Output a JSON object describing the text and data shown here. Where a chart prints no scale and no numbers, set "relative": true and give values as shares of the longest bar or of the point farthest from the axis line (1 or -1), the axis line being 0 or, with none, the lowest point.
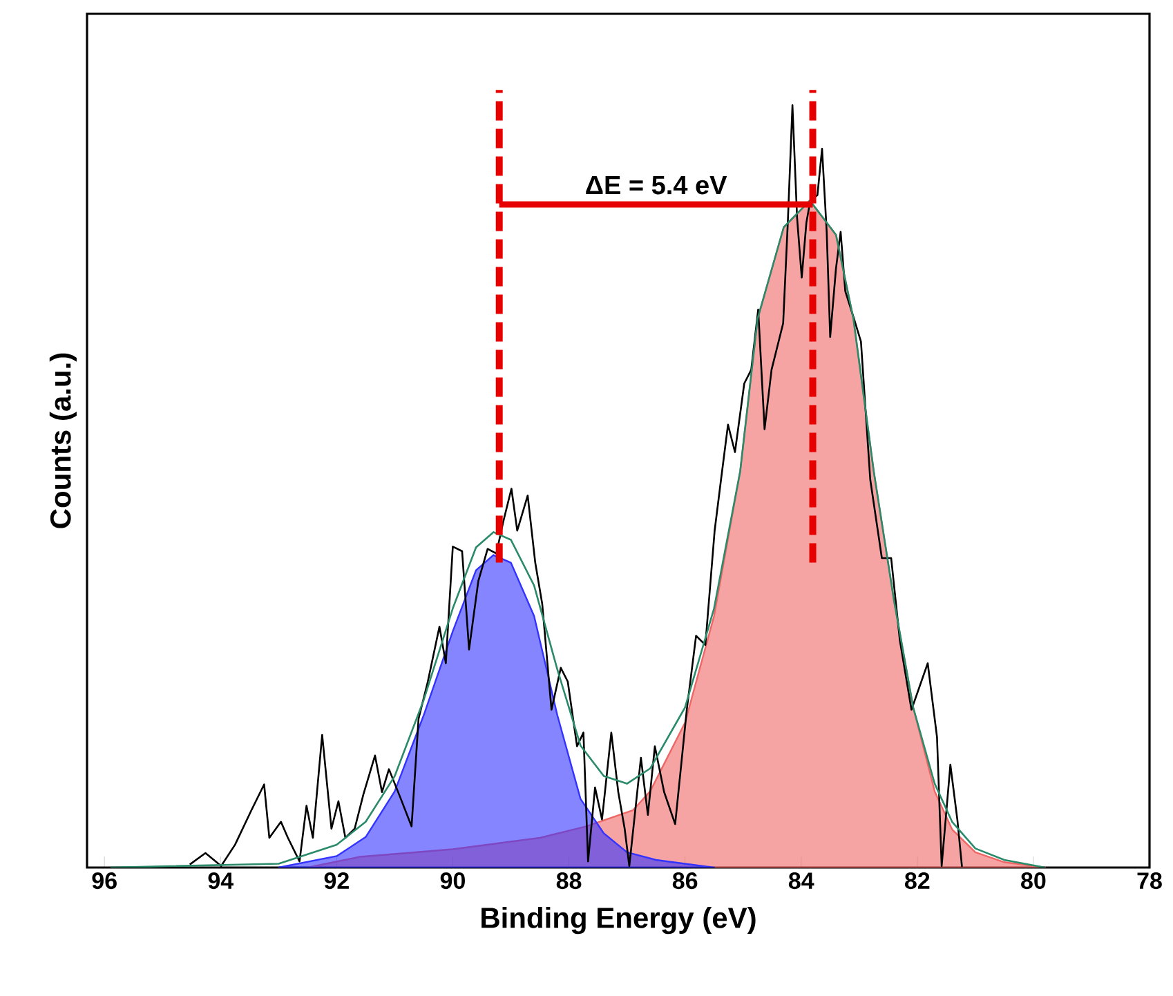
{
  "chart_data": {
    "type": "line",
    "relative": true,
    "xlabel": "Binding Energy (eV)",
    "ylabel": "Counts (a.u.)",
    "xlim": [
      96.3,
      78
    ],
    "xticks": [
      96,
      94,
      92,
      90,
      88,
      86,
      84,
      82,
      80,
      78
    ],
    "series": [
      {
        "type": "area",
        "color": "#ee6666",
        "x": [
          92.5,
          91.6,
          90.0,
          88.5,
          87.7,
          86.9,
          86.6,
          86.0,
          85.5,
          85.05,
          84.75,
          84.3,
          83.85,
          83.4,
          83.1,
          82.75,
          82.4,
          82.07,
          81.7,
          81.4,
          81.0,
          80.5,
          79.8
        ],
        "values": [
          0.0,
          0.014,
          0.024,
          0.039,
          0.054,
          0.075,
          0.1,
          0.19,
          0.33,
          0.52,
          0.72,
          0.84,
          0.875,
          0.83,
          0.72,
          0.52,
          0.35,
          0.21,
          0.1,
          0.05,
          0.02,
          0.007,
          0.0
        ]
      },
      {
        "type": "area",
        "color": "#3333ff",
        "x": [
          93.0,
          92.0,
          91.5,
          91.0,
          90.5,
          90.0,
          89.6,
          89.3,
          89.0,
          88.6,
          88.2,
          87.8,
          87.4,
          87.0,
          86.5,
          85.5
        ],
        "values": [
          0.0,
          0.015,
          0.04,
          0.1,
          0.2,
          0.31,
          0.39,
          0.41,
          0.4,
          0.33,
          0.2,
          0.09,
          0.045,
          0.02,
          0.01,
          0.0
        ]
      },
      {
        "color": "#000000",
        "x": [
          94.53,
          94.26,
          93.99,
          93.75,
          93.47,
          93.25,
          93.16,
          92.96,
          92.84,
          92.64,
          92.52,
          92.41,
          92.25,
          92.09,
          91.97,
          91.85,
          91.69,
          91.54,
          91.34,
          91.22,
          91.1,
          90.91,
          90.71,
          90.59,
          90.43,
          90.23,
          90.12,
          90.0,
          89.84,
          89.72,
          89.56,
          89.4,
          89.25,
          89.13,
          88.99,
          88.89,
          88.71,
          88.58,
          88.46,
          88.3,
          88.14,
          88.02,
          87.86,
          87.75,
          87.67,
          87.55,
          87.43,
          87.27,
          87.15,
          87.04,
          86.96,
          86.76,
          86.64,
          86.52,
          86.36,
          86.17,
          85.97,
          85.81,
          85.65,
          85.49,
          85.38,
          85.26,
          85.14,
          84.98,
          84.86,
          84.74,
          84.63,
          84.51,
          84.31,
          84.23,
          84.15,
          84.07,
          83.99,
          83.91,
          83.84,
          83.72,
          83.64,
          83.56,
          83.5,
          83.4,
          83.32,
          83.24,
          83.09,
          82.97,
          82.81,
          82.61,
          82.45,
          82.3,
          82.1,
          81.82,
          81.66,
          81.58,
          81.43,
          81.31,
          81.23
        ],
        "values": [
          0.004,
          0.019,
          0.002,
          0.03,
          0.075,
          0.109,
          0.039,
          0.06,
          0.039,
          0.008,
          0.081,
          0.039,
          0.174,
          0.051,
          0.087,
          0.039,
          0.051,
          0.096,
          0.147,
          0.099,
          0.129,
          0.093,
          0.054,
          0.195,
          0.244,
          0.316,
          0.268,
          0.421,
          0.415,
          0.286,
          0.376,
          0.418,
          0.412,
          0.454,
          0.497,
          0.442,
          0.488,
          0.4,
          0.346,
          0.207,
          0.262,
          0.244,
          0.159,
          0.177,
          0.008,
          0.105,
          0.063,
          0.177,
          0.099,
          0.051,
          0.002,
          0.144,
          0.069,
          0.159,
          0.099,
          0.057,
          0.207,
          0.304,
          0.292,
          0.442,
          0.509,
          0.581,
          0.545,
          0.635,
          0.653,
          0.732,
          0.575,
          0.653,
          0.714,
          0.846,
          1.0,
          0.852,
          0.774,
          0.846,
          0.876,
          0.882,
          0.943,
          0.834,
          0.696,
          0.786,
          0.834,
          0.756,
          0.72,
          0.69,
          0.509,
          0.406,
          0.406,
          0.298,
          0.207,
          0.268,
          0.171,
          0.002,
          0.135,
          0.063,
          0.001
        ]
      },
      {
        "color": "#2a8a6a",
        "x": [
          95.9,
          93.0,
          92.0,
          91.5,
          91.0,
          90.5,
          90.0,
          89.6,
          89.3,
          89.0,
          88.6,
          88.2,
          87.8,
          87.4,
          87.0,
          86.6,
          86.0,
          85.5,
          85.05,
          84.75,
          84.3,
          83.85,
          83.4,
          83.1,
          82.75,
          82.4,
          82.07,
          81.7,
          81.4,
          81.0,
          80.5,
          79.8
        ],
        "values": [
          0.0,
          0.005,
          0.03,
          0.06,
          0.12,
          0.22,
          0.34,
          0.42,
          0.44,
          0.43,
          0.37,
          0.26,
          0.16,
          0.12,
          0.11,
          0.13,
          0.21,
          0.34,
          0.52,
          0.72,
          0.84,
          0.875,
          0.83,
          0.72,
          0.52,
          0.35,
          0.21,
          0.11,
          0.06,
          0.025,
          0.01,
          0.0
        ]
      }
    ],
    "ref_lines": [
      {
        "axis": "x",
        "value": 89.2,
        "color": "#e60000",
        "line_style": "dashed"
      },
      {
        "axis": "x",
        "value": 83.8,
        "color": "#e60000",
        "line_style": "dashed"
      }
    ],
    "annotations": [
      "ΔE = 5.4 eV"
    ],
    "grid": false
  }
}
